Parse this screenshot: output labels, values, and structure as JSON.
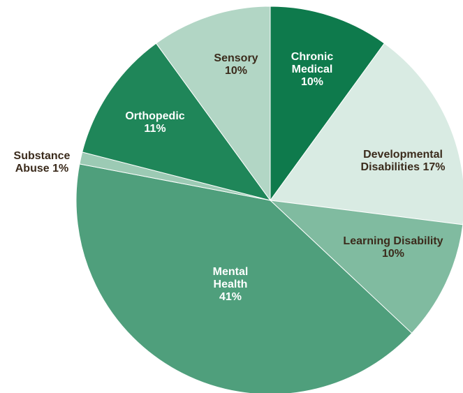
{
  "chart_data": {
    "type": "pie",
    "categories": [
      "Chronic Medical",
      "Developmental Disabilities",
      "Learning Disability",
      "Mental Health",
      "Substance Abuse",
      "Orthopedic",
      "Sensory"
    ],
    "values": [
      10,
      17,
      10,
      41,
      1,
      11,
      10
    ],
    "value_labels": [
      "10%",
      "17%",
      "10%",
      "41%",
      "1%",
      "11%",
      "10%"
    ],
    "colors": [
      "#0e7a4c",
      "#d9ebe3",
      "#80bba0",
      "#4f9f7c",
      "#9ccab4",
      "#1f8659",
      "#b2d6c5"
    ]
  }
}
